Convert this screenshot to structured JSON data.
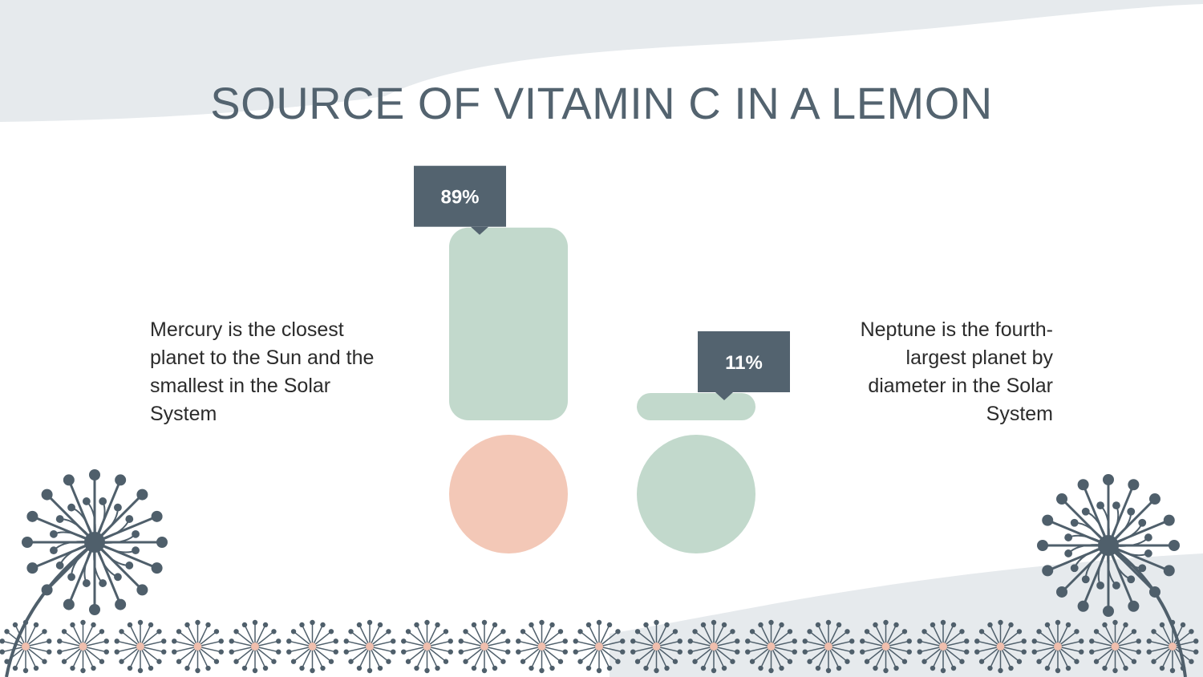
{
  "slide": {
    "title": "SOURCE OF VITAMIN C IN A LEMON",
    "left_text": "Mercury is the closest planet to the Sun and the smallest in the Solar System",
    "right_text": "Neptune is the fourth-largest planet by diameter in the Solar System"
  },
  "colors": {
    "title": "#53636f",
    "label_box": "#53636f",
    "bar_green": "#c2d9cc",
    "circle_peach": "#f3c8b7",
    "circle_green": "#c2d9cc",
    "background_wave": "#e6eaed",
    "flower": "#4f5f6b",
    "flower_center": "#f0bfae"
  },
  "icons": [
    "dandelion-flower-icon"
  ],
  "chart_data": {
    "type": "bar",
    "categories": [
      "",
      ""
    ],
    "values": [
      89,
      11
    ],
    "value_labels": [
      "89%",
      "11%"
    ],
    "ylim": [
      0,
      100
    ],
    "unit": "%",
    "bar_colors": [
      "#c2d9cc",
      "#c2d9cc"
    ],
    "marker_colors": [
      "#f3c8b7",
      "#c2d9cc"
    ],
    "grid": false,
    "legend": "none"
  }
}
